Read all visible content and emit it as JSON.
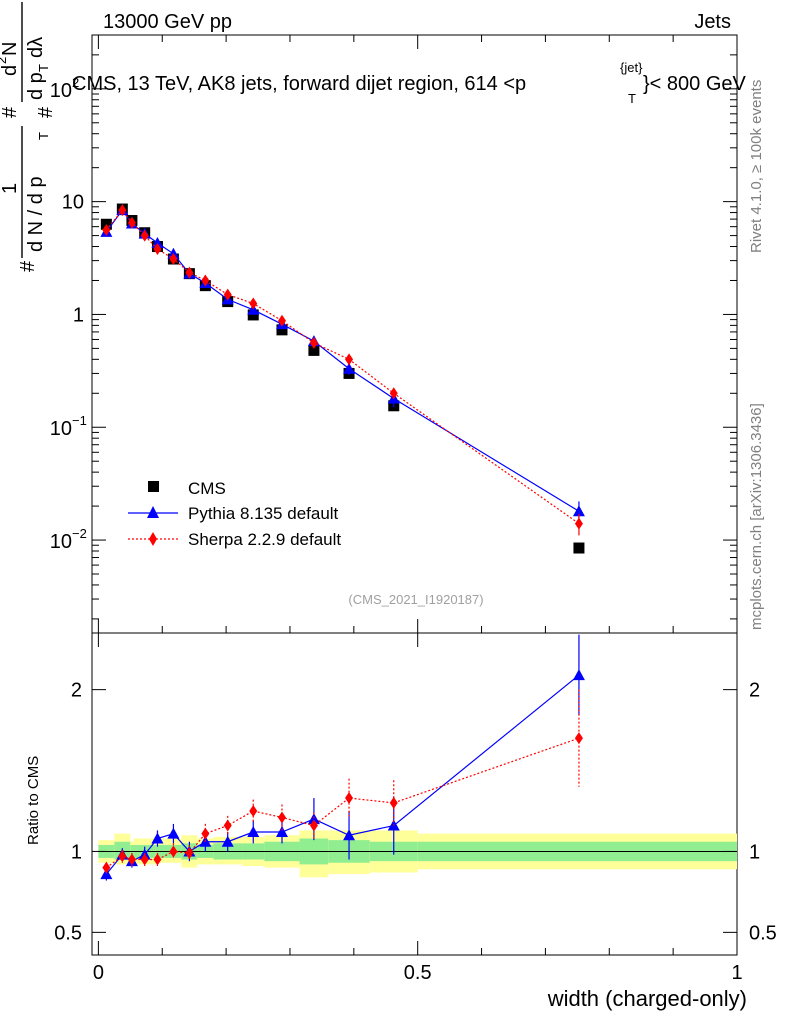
{
  "header": {
    "left": "13000 GeV pp",
    "right": "Jets"
  },
  "side_labels": {
    "rivet": "Rivet 4.1.0, ≥ 100k events",
    "mcplots": "mcplots.cern.ch [arXiv:1306.3436]"
  },
  "chart_data": [
    {
      "type": "scatter",
      "title": "CMS, 13 TeV, AK8 jets, forward dijet region, 614 <p_T^{jet}< 800 GeV",
      "title_text": "CMS, 13 TeV, AK8 jets, forward dijet region, 614 <p",
      "title_sup": "{jet}",
      "title_sub": "T",
      "title_tail": "}< 800 GeV",
      "ylabel": "1/(dN/dp_T) d^2N/(dp_T dλ)",
      "ylabel_parts": {
        "frac_num": "1",
        "frac_den": "d N / d p",
        "den_sub": "T",
        "hash": "#",
        "right_num": "d",
        "right_num_sup": "2",
        "right_num_tail": "N",
        "right_den": "d p",
        "right_den_sub": "T",
        "right_den_tail": "dλ"
      },
      "yscale": "log",
      "ylim": [
        0.0015,
        300
      ],
      "xlim": [
        -0.01,
        1.0
      ],
      "yticks": [
        {
          "value": 0.01,
          "base": "10",
          "exp": "−2"
        },
        {
          "value": 0.1,
          "base": "10",
          "exp": "−1"
        },
        {
          "value": 1,
          "label": "1"
        },
        {
          "value": 10,
          "label": "10"
        },
        {
          "value": 100,
          "base": "10",
          "exp": "2"
        }
      ],
      "watermark": "(CMS_2021_I1920187)",
      "legend_position": "bottom-left",
      "series": [
        {
          "name": "CMS",
          "color": "#000000",
          "marker": "square",
          "x": [
            0.0125,
            0.0375,
            0.0525,
            0.0725,
            0.0925,
            0.1175,
            0.1425,
            0.1675,
            0.2025,
            0.2425,
            0.2875,
            0.3375,
            0.3925,
            0.4625,
            0.7525
          ],
          "y": [
            6.3,
            8.6,
            6.8,
            5.3,
            4.0,
            3.1,
            2.3,
            1.8,
            1.3,
            0.99,
            0.73,
            0.48,
            0.3,
            0.155,
            0.0085
          ]
        },
        {
          "name": "Pythia 8.135 default",
          "color": "#0000ff",
          "marker": "triangle",
          "line": "solid",
          "x": [
            0.0125,
            0.0375,
            0.0525,
            0.0725,
            0.0925,
            0.1175,
            0.1425,
            0.1675,
            0.2025,
            0.2425,
            0.2875,
            0.3375,
            0.3925,
            0.4625,
            0.7525
          ],
          "y": [
            5.4,
            8.4,
            6.4,
            5.2,
            4.3,
            3.45,
            2.3,
            1.9,
            1.36,
            1.1,
            0.82,
            0.58,
            0.33,
            0.18,
            0.018
          ],
          "yerr": [
            0.25,
            0.3,
            0.25,
            0.2,
            0.2,
            0.15,
            0.12,
            0.1,
            0.07,
            0.06,
            0.05,
            0.06,
            0.04,
            0.03,
            0.004
          ]
        },
        {
          "name": "Sherpa 2.2.9 default",
          "color": "#ff0000",
          "marker": "diamond",
          "line": "dotted",
          "x": [
            0.0125,
            0.0375,
            0.0525,
            0.0725,
            0.0925,
            0.1175,
            0.1425,
            0.1675,
            0.2025,
            0.2425,
            0.2875,
            0.3375,
            0.3925,
            0.4625,
            0.7525
          ],
          "y": [
            5.6,
            8.4,
            6.5,
            5.0,
            3.8,
            3.1,
            2.35,
            2.0,
            1.5,
            1.25,
            0.88,
            0.56,
            0.4,
            0.2,
            0.014
          ],
          "yerr": [
            0.2,
            0.3,
            0.25,
            0.2,
            0.15,
            0.12,
            0.1,
            0.1,
            0.07,
            0.06,
            0.05,
            0.04,
            0.03,
            0.02,
            0.003
          ]
        }
      ]
    },
    {
      "type": "scatter",
      "title": "",
      "ylabel": "Ratio to CMS",
      "xlabel": "width (charged-only)",
      "ylim": [
        0.36,
        2.35
      ],
      "xlim": [
        -0.01,
        1.0
      ],
      "yticks": [
        0.5,
        1,
        2
      ],
      "xticks": [
        0,
        0.5,
        1
      ],
      "xtick_labels": [
        "0",
        "0.5",
        "1"
      ],
      "ytick_labels": [
        "0.5",
        "1",
        "2"
      ],
      "reference_line": 1,
      "uncertainty_bands": {
        "bin_edges": [
          0,
          0.025,
          0.05,
          0.055,
          0.09,
          0.095,
          0.13,
          0.155,
          0.18,
          0.225,
          0.26,
          0.315,
          0.36,
          0.425,
          0.5,
          1.0
        ],
        "inner": [
          [
            0.96,
            1.04
          ],
          [
            0.95,
            1.06
          ],
          [
            0.96,
            1.04
          ],
          [
            0.96,
            1.04
          ],
          [
            0.96,
            1.04
          ],
          [
            0.96,
            1.04
          ],
          [
            0.95,
            1.05
          ],
          [
            0.96,
            1.04
          ],
          [
            0.95,
            1.05
          ],
          [
            0.95,
            1.05
          ],
          [
            0.94,
            1.06
          ],
          [
            0.92,
            1.08
          ],
          [
            0.93,
            1.07
          ],
          [
            0.94,
            1.06
          ],
          [
            0.94,
            1.06
          ]
        ],
        "outer": [
          [
            0.93,
            1.07
          ],
          [
            0.92,
            1.11
          ],
          [
            0.94,
            1.06
          ],
          [
            0.92,
            1.08
          ],
          [
            0.93,
            1.07
          ],
          [
            0.93,
            1.08
          ],
          [
            0.9,
            1.1
          ],
          [
            0.92,
            1.08
          ],
          [
            0.92,
            1.09
          ],
          [
            0.91,
            1.09
          ],
          [
            0.9,
            1.1
          ],
          [
            0.84,
            1.13
          ],
          [
            0.86,
            1.13
          ],
          [
            0.87,
            1.13
          ],
          [
            0.89,
            1.11
          ]
        ]
      },
      "series": [
        {
          "name": "Pythia 8.135 default",
          "color": "#0000ff",
          "marker": "triangle",
          "x": [
            0.0125,
            0.0375,
            0.0525,
            0.0725,
            0.0925,
            0.1175,
            0.1425,
            0.1675,
            0.2025,
            0.2425,
            0.2875,
            0.3375,
            0.3925,
            0.4625,
            0.7525
          ],
          "y": [
            0.86,
            0.98,
            0.94,
            0.98,
            1.08,
            1.11,
            1.0,
            1.06,
            1.06,
            1.12,
            1.12,
            1.2,
            1.1,
            1.16,
            2.09
          ],
          "yerr": [
            0.04,
            0.04,
            0.04,
            0.05,
            0.05,
            0.06,
            0.06,
            0.06,
            0.06,
            0.07,
            0.07,
            0.13,
            0.15,
            0.18,
            0.25
          ]
        },
        {
          "name": "Sherpa 2.2.9 default",
          "color": "#ff0000",
          "marker": "diamond",
          "x": [
            0.0125,
            0.0375,
            0.0525,
            0.0725,
            0.0925,
            0.1175,
            0.1425,
            0.1675,
            0.2025,
            0.2425,
            0.2875,
            0.3375,
            0.3925,
            0.4625,
            0.7525
          ],
          "y": [
            0.9,
            0.97,
            0.95,
            0.95,
            0.95,
            1.0,
            0.99,
            1.11,
            1.16,
            1.25,
            1.21,
            1.16,
            1.33,
            1.3,
            1.7
          ],
          "yerr": [
            0.03,
            0.04,
            0.04,
            0.04,
            0.04,
            0.05,
            0.05,
            0.06,
            0.06,
            0.07,
            0.08,
            0.08,
            0.12,
            0.14,
            0.3
          ]
        }
      ]
    }
  ]
}
